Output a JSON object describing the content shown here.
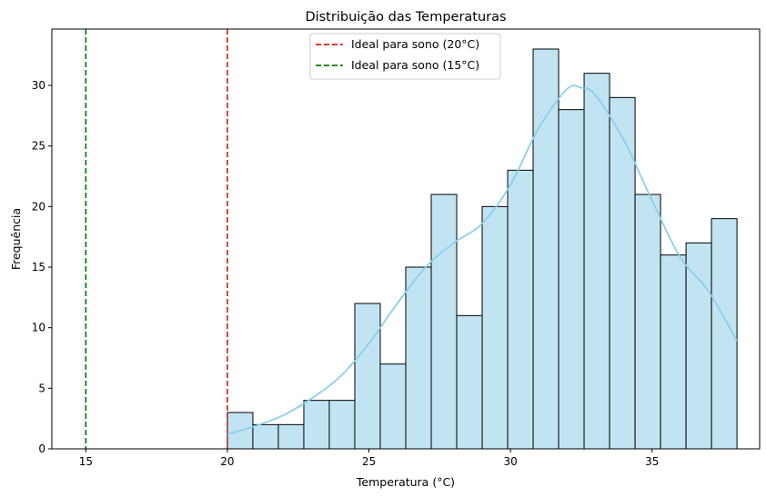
{
  "chart_data": {
    "type": "histogram",
    "title": "Distribuição das Temperaturas",
    "xlabel": "Temperatura (°C)",
    "ylabel": "Frequência",
    "xlim": [
      13.8,
      38.8
    ],
    "ylim": [
      0,
      34.65
    ],
    "xticks": [
      15,
      20,
      25,
      30,
      35
    ],
    "yticks": [
      0,
      5,
      10,
      15,
      20,
      25,
      30
    ],
    "bins": {
      "start": 20.0,
      "width": 0.9,
      "counts": [
        3,
        2,
        2,
        4,
        4,
        12,
        7,
        15,
        21,
        11,
        20,
        23,
        33,
        28,
        31,
        29,
        21,
        16,
        17,
        19
      ]
    },
    "bar_color": "#c2e4f2",
    "bar_edge_color": "#000000",
    "kde": {
      "color": "#87ceeb",
      "x": [
        20.0,
        21,
        22,
        23,
        24,
        25,
        26,
        27,
        28,
        29,
        30,
        31,
        32,
        32.5,
        33,
        34,
        35,
        36,
        37,
        38
      ],
      "y": [
        1.2,
        1.9,
        2.8,
        4.2,
        6.0,
        8.7,
        12.0,
        15.0,
        17.0,
        18.6,
        21.8,
        26.5,
        29.7,
        29.8,
        29.2,
        25.5,
        20.5,
        15.8,
        13.0,
        8.9
      ]
    },
    "vlines": [
      {
        "x": 20,
        "color": "#d62728",
        "style": "dashed",
        "label": "Ideal para sono (20°C)"
      },
      {
        "x": 15,
        "color": "#008000",
        "style": "dashed",
        "label": "Ideal para sono (15°C)"
      }
    ],
    "legend": {
      "placement": "upper-center",
      "items": [
        {
          "label": "Ideal para sono (20°C)",
          "color": "#e41a1c"
        },
        {
          "label": "Ideal para sono (15°C)",
          "color": "#008000"
        }
      ]
    }
  }
}
